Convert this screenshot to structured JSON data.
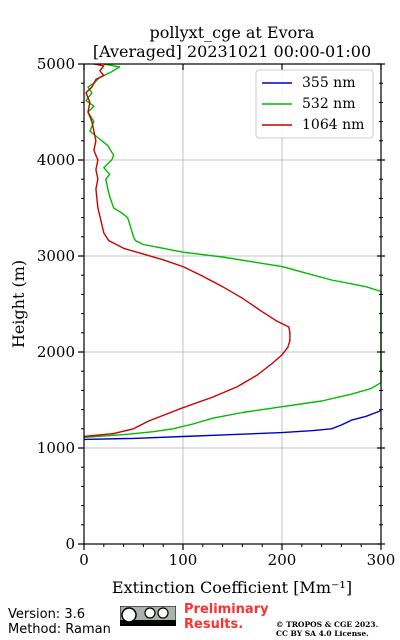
{
  "chart_data": {
    "type": "line",
    "title_line1": "pollyxt_cge at Evora",
    "title_line2": "[Averaged] 20231021 00:00-01:00",
    "xlabel": "Extinction Coefficient [Mm⁻¹]",
    "ylabel": "Height (m)",
    "xlim": [
      0,
      300
    ],
    "ylim": [
      0,
      5000
    ],
    "xticks": [
      0,
      100,
      200,
      300
    ],
    "yticks": [
      0,
      1000,
      2000,
      3000,
      4000,
      5000
    ],
    "grid": true,
    "legend_position": "top-right",
    "series": [
      {
        "name": "355 nm",
        "color": "#0000cc",
        "points": [
          [
            0,
            1090
          ],
          [
            50,
            1100
          ],
          [
            100,
            1120
          ],
          [
            150,
            1140
          ],
          [
            200,
            1160
          ],
          [
            230,
            1180
          ],
          [
            250,
            1200
          ],
          [
            260,
            1240
          ],
          [
            270,
            1290
          ],
          [
            285,
            1330
          ],
          [
            295,
            1370
          ],
          [
            300,
            1390
          ]
        ]
      },
      {
        "name": "532 nm",
        "color": "#00bb00",
        "points": [
          [
            0,
            1110
          ],
          [
            40,
            1140
          ],
          [
            70,
            1170
          ],
          [
            90,
            1200
          ],
          [
            110,
            1250
          ],
          [
            130,
            1310
          ],
          [
            160,
            1370
          ],
          [
            200,
            1430
          ],
          [
            240,
            1490
          ],
          [
            270,
            1560
          ],
          [
            290,
            1620
          ],
          [
            300,
            1680
          ],
          [
            300,
            2630
          ],
          [
            285,
            2680
          ],
          [
            250,
            2750
          ],
          [
            225,
            2820
          ],
          [
            200,
            2890
          ],
          [
            170,
            2940
          ],
          [
            140,
            2990
          ],
          [
            100,
            3040
          ],
          [
            80,
            3080
          ],
          [
            60,
            3120
          ],
          [
            52,
            3160
          ],
          [
            50,
            3200
          ],
          [
            48,
            3270
          ],
          [
            46,
            3340
          ],
          [
            44,
            3400
          ],
          [
            38,
            3450
          ],
          [
            30,
            3500
          ],
          [
            28,
            3560
          ],
          [
            26,
            3620
          ],
          [
            24,
            3700
          ],
          [
            22,
            3800
          ],
          [
            26,
            3850
          ],
          [
            20,
            3920
          ],
          [
            28,
            4000
          ],
          [
            30,
            4050
          ],
          [
            24,
            4150
          ],
          [
            12,
            4250
          ],
          [
            6,
            4300
          ],
          [
            10,
            4400
          ],
          [
            4,
            4500
          ],
          [
            10,
            4560
          ],
          [
            2,
            4620
          ],
          [
            8,
            4700
          ],
          [
            4,
            4760
          ],
          [
            10,
            4800
          ],
          [
            16,
            4860
          ],
          [
            28,
            4920
          ],
          [
            36,
            4970
          ],
          [
            20,
            5000
          ]
        ]
      },
      {
        "name": "1064 nm",
        "color": "#cc0000",
        "points": [
          [
            0,
            1120
          ],
          [
            30,
            1150
          ],
          [
            50,
            1200
          ],
          [
            65,
            1280
          ],
          [
            80,
            1340
          ],
          [
            100,
            1420
          ],
          [
            130,
            1530
          ],
          [
            155,
            1640
          ],
          [
            175,
            1760
          ],
          [
            190,
            1880
          ],
          [
            200,
            1970
          ],
          [
            206,
            2050
          ],
          [
            208,
            2120
          ],
          [
            208,
            2200
          ],
          [
            207,
            2260
          ],
          [
            195,
            2320
          ],
          [
            180,
            2420
          ],
          [
            160,
            2560
          ],
          [
            140,
            2680
          ],
          [
            120,
            2790
          ],
          [
            100,
            2890
          ],
          [
            80,
            2960
          ],
          [
            60,
            3020
          ],
          [
            40,
            3080
          ],
          [
            25,
            3160
          ],
          [
            20,
            3240
          ],
          [
            18,
            3330
          ],
          [
            16,
            3420
          ],
          [
            14,
            3500
          ],
          [
            13,
            3600
          ],
          [
            12,
            3700
          ],
          [
            14,
            3800
          ],
          [
            12,
            3900
          ],
          [
            14,
            4000
          ],
          [
            10,
            4100
          ],
          [
            12,
            4200
          ],
          [
            10,
            4300
          ],
          [
            8,
            4400
          ],
          [
            4,
            4500
          ],
          [
            6,
            4600
          ],
          [
            2,
            4700
          ],
          [
            8,
            4760
          ],
          [
            12,
            4840
          ],
          [
            20,
            4880
          ],
          [
            16,
            4930
          ],
          [
            20,
            4980
          ],
          [
            10,
            5000
          ]
        ]
      }
    ]
  },
  "footer": {
    "version": "Version: 3.6",
    "method": "Method: Raman",
    "preliminary_line1": "Preliminary",
    "preliminary_line2": "Results.",
    "license_line1": "© TROPOS & CGE 2023.",
    "license_line2": "CC BY SA 4.0 License."
  }
}
